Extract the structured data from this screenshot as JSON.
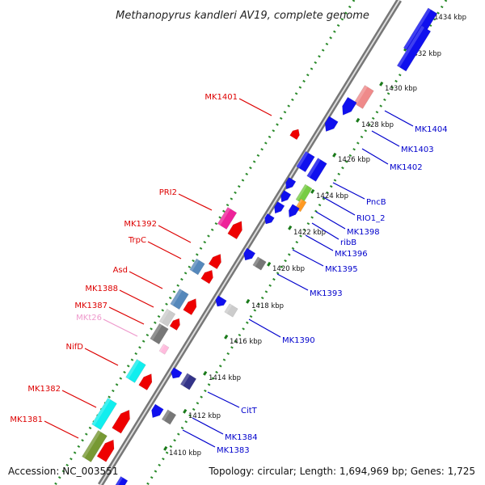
{
  "title": "Methanopyrus kandleri AV19, complete genome",
  "footer": {
    "accession": "Accession: NC_003551",
    "summary": "Topology: circular; Length: 1,694,969 bp; Genes: 1,725"
  },
  "colors": {
    "plus_label": "#dd0000",
    "minus_label": "#0000cc",
    "tick_plus": "#228822",
    "tick_minus": "#228822"
  },
  "kbp_ticks": [
    {
      "kbp": 1410,
      "label": "1410 kbp"
    },
    {
      "kbp": 1412,
      "label": "1412 kbp"
    },
    {
      "kbp": 1414,
      "label": "1414 kbp"
    },
    {
      "kbp": 1416,
      "label": "1416 kbp"
    },
    {
      "kbp": 1418,
      "label": "1418 kbp"
    },
    {
      "kbp": 1420,
      "label": "1420 kbp"
    },
    {
      "kbp": 1422,
      "label": "1422 kbp"
    },
    {
      "kbp": 1424,
      "label": "1424 kbp"
    },
    {
      "kbp": 1426,
      "label": "1426 kbp"
    },
    {
      "kbp": 1428,
      "label": "1428 kbp"
    },
    {
      "kbp": 1430,
      "label": "1430 kbp"
    },
    {
      "kbp": 1432,
      "label": "1432 kbp"
    },
    {
      "kbp": 1434,
      "label": "1434 kbp"
    }
  ],
  "plus_labels": [
    {
      "name": "MK1401",
      "color": "#dd0000"
    },
    {
      "name": "PRI2",
      "color": "#dd0000"
    },
    {
      "name": "MK1392",
      "color": "#dd0000"
    },
    {
      "name": "TrpC",
      "color": "#dd0000"
    },
    {
      "name": "Asd",
      "color": "#dd0000"
    },
    {
      "name": "MK1388",
      "color": "#dd0000"
    },
    {
      "name": "MK1387",
      "color": "#dd0000"
    },
    {
      "name": "MKt26",
      "color": "#ee99cc"
    },
    {
      "name": "NifD",
      "color": "#dd0000"
    },
    {
      "name": "MK1382",
      "color": "#dd0000"
    },
    {
      "name": "MK1381",
      "color": "#dd0000"
    }
  ],
  "minus_labels": [
    {
      "name": "MK1404"
    },
    {
      "name": "MK1403"
    },
    {
      "name": "MK1402"
    },
    {
      "name": "PncB"
    },
    {
      "name": "RIO1_2"
    },
    {
      "name": "MK1398"
    },
    {
      "name": "ribB"
    },
    {
      "name": "MK1396"
    },
    {
      "name": "MK1395"
    },
    {
      "name": "MK1393"
    },
    {
      "name": "MK1390"
    },
    {
      "name": "CitT"
    },
    {
      "name": "MK1384"
    },
    {
      "name": "MK1383"
    }
  ]
}
